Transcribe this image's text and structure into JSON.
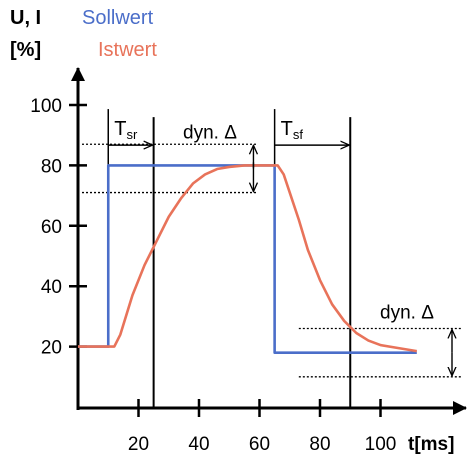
{
  "chart_data": {
    "type": "line",
    "title": "",
    "ylabel_line1": "U, I",
    "ylabel_line2": "[%]",
    "xlabel": "t[ms]",
    "xlim": [
      0,
      115
    ],
    "ylim": [
      0,
      100
    ],
    "x_ticks": [
      20,
      40,
      60,
      80,
      100
    ],
    "y_ticks": [
      20,
      40,
      60,
      80,
      100
    ],
    "series": [
      {
        "name": "Sollwert",
        "color": "#4b6ec9",
        "x": [
          0,
          10,
          10,
          65,
          65,
          112
        ],
        "y": [
          20,
          20,
          80,
          80,
          18,
          18
        ]
      },
      {
        "name": "Istwert",
        "color": "#e8735a",
        "x": [
          0,
          12,
          14,
          18,
          22,
          26,
          30,
          34,
          38,
          42,
          46,
          50,
          55,
          60,
          66,
          68,
          70,
          73,
          76,
          80,
          84,
          88,
          92,
          96,
          100,
          106,
          112
        ],
        "y": [
          20,
          20,
          24,
          37,
          47,
          55,
          63,
          69,
          74,
          77,
          78.8,
          79.5,
          80,
          80,
          80,
          77,
          71,
          62,
          52,
          42,
          34,
          28.5,
          24.5,
          22,
          20.5,
          19.5,
          18.5
        ]
      }
    ],
    "annotations": {
      "tsr": {
        "label": "T",
        "sub": "sr",
        "x1": 10,
        "x2": 25,
        "arrow_y": 96
      },
      "tsf": {
        "label": "T",
        "sub": "sf",
        "x1": 65,
        "x2": 90,
        "arrow_y": 96
      },
      "dyn_top": {
        "label": "dyn. Δ",
        "band_y": [
          87,
          71
        ],
        "x1": 0,
        "x2": 60,
        "arrow_x": 58
      },
      "dyn_bottom": {
        "label": "dyn. Δ",
        "band_y": [
          26,
          10
        ],
        "x1": 73,
        "x2": 120,
        "arrow_x": 116
      },
      "vlines": [
        {
          "x": 25,
          "y_top": 96
        },
        {
          "x": 90,
          "y_top": 96
        }
      ]
    }
  }
}
